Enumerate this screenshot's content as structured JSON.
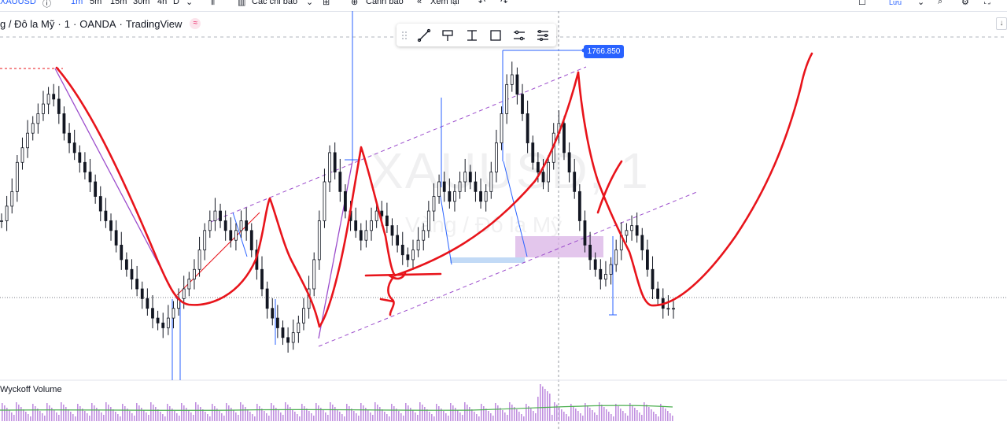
{
  "toolbar": {
    "symbol": "XAUUSD",
    "intervals": [
      "1m",
      "5m",
      "15m",
      "30m",
      "4h",
      "D"
    ],
    "indicators_label": "Các chỉ báo",
    "alert_label": "Cảnh báo",
    "replay_label": "Xem lại",
    "save_label": "Lưu"
  },
  "legend": {
    "symbol_desc": "g / Đô la Mỹ",
    "interval": "1",
    "source": "OANDA",
    "platform": "TradingView"
  },
  "watermark": {
    "symbol": "XAUUSD, 1",
    "description": "Vàng / Đô la Mỹ"
  },
  "price_tag": "1766.850",
  "volume_pane": {
    "label": "Wyckoff Volume"
  },
  "colors": {
    "candle": "#131722",
    "drawing_red": "#e8141b",
    "tool_blue": "#2962ff",
    "channel_purple": "#9c4dcc",
    "zone_purple": "#d9b3e6",
    "zone_blue": "#bbd6f5",
    "volume_yellow": "#f0c419",
    "volume_green": "#8bc34a",
    "volume_purple": "#c08fe0"
  },
  "chart_data": {
    "type": "candlestick",
    "series": [
      {
        "name": "XAUUSD",
        "close": [
          30,
          33,
          36,
          42,
          45,
          48,
          50,
          52,
          54,
          56,
          55,
          52,
          48,
          46,
          44,
          42,
          40,
          38,
          35,
          32,
          30,
          28,
          25,
          22,
          20,
          18,
          16,
          14,
          12,
          10,
          9,
          8,
          10,
          12,
          14,
          16,
          18,
          20,
          24,
          28,
          30,
          32,
          30,
          28,
          26,
          28,
          30,
          28,
          24,
          20,
          16,
          12,
          10,
          8,
          6,
          5,
          7,
          9,
          12,
          16,
          22,
          30,
          38,
          44,
          40,
          36,
          32,
          30,
          28,
          26,
          28,
          30,
          32,
          31,
          29,
          27,
          25,
          23,
          22,
          24,
          26,
          28,
          32,
          35,
          38,
          36,
          34,
          36,
          38,
          40,
          38,
          36,
          34,
          36,
          40,
          46,
          52,
          58,
          60,
          56,
          52,
          46,
          42,
          40,
          38,
          42,
          48,
          50,
          44,
          40,
          36,
          30,
          25,
          22,
          20,
          18,
          19,
          21,
          24,
          27,
          28,
          29,
          27,
          24,
          20,
          16,
          14,
          12,
          12,
          12
        ]
      }
    ],
    "price_label": 1766.85,
    "volume_series": {
      "name": "Wyckoff Volume"
    },
    "grid": false
  }
}
